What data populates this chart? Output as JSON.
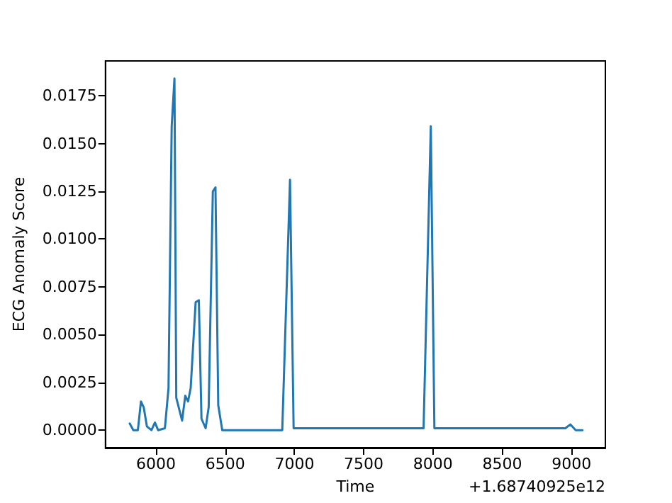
{
  "chart_data": {
    "type": "line",
    "xlabel": "Time",
    "ylabel": "ECG Anomaly Score",
    "annotations": [
      "+1.68740925e12"
    ],
    "x": [
      5811,
      5837,
      5870,
      5892,
      5912,
      5935,
      5968,
      5993,
      6016,
      6065,
      6091,
      6114,
      6134,
      6147,
      6189,
      6212,
      6232,
      6251,
      6287,
      6310,
      6329,
      6359,
      6381,
      6411,
      6430,
      6450,
      6479,
      6912,
      6968,
      6994,
      7932,
      7984,
      8010,
      8955,
      8991,
      9030,
      9079
    ],
    "values": [
      0.00035,
      0,
      0,
      0.0015,
      0.0012,
      0.0002,
      0,
      0.0004,
      0,
      0.0001,
      0.0022,
      0.0159,
      0.0184,
      0.0017,
      0.0005,
      0.0018,
      0.0015,
      0.0022,
      0.0067,
      0.0068,
      0.0006,
      0.0001,
      0.0012,
      0.0125,
      0.0127,
      0.0013,
      0,
      0,
      0.0131,
      0.0001,
      0.0001,
      0.0159,
      0.0001,
      0.0001,
      0.0003,
      0,
      0
    ],
    "color": "#1f77b4",
    "marker": "none",
    "line_style": "solid",
    "grid": false,
    "xlim": [
      5636,
      9244
    ],
    "xticks": [
      6000,
      6500,
      7000,
      7500,
      8000,
      8500,
      9000
    ],
    "ylim": [
      -0.00092,
      0.01932
    ],
    "yticks": [
      {
        "value": 0,
        "label": "0.0000"
      },
      {
        "value": 0.0025,
        "label": "0.0025"
      },
      {
        "value": 0.005,
        "label": "0.0050"
      },
      {
        "value": 0.0075,
        "label": "0.0075"
      },
      {
        "value": 0.01,
        "label": "0.0100"
      },
      {
        "value": 0.0125,
        "label": "0.0125"
      },
      {
        "value": 0.015,
        "label": "0.0150"
      },
      {
        "value": 0.0175,
        "label": "0.0175"
      }
    ]
  }
}
